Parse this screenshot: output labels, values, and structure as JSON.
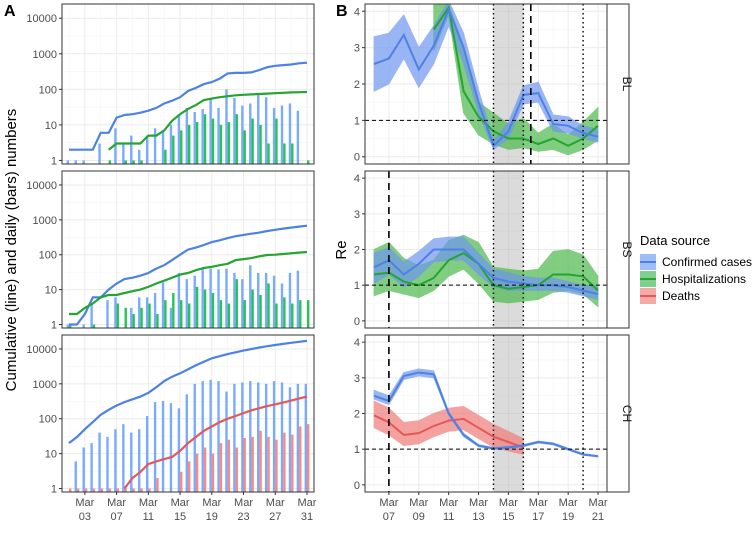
{
  "colors": {
    "confirmed": "#619cff",
    "hospitalizations": "#00ba38",
    "deaths": "#f8766d",
    "confirmed_line": "#4c82e6",
    "hosp_line": "#23a52f",
    "deaths_line": "#e5585a",
    "band_confirmed": "#6f97ee",
    "band_hosp": "#4cb84c",
    "band_deaths": "#f07c78",
    "grid_major": "#ebebeb",
    "grid_minor": "#f5f5f5",
    "shade": "#bdbdbd"
  },
  "legend": {
    "title": "Data source",
    "items": [
      "Confirmed cases",
      "Hospitalizations",
      "Deaths"
    ]
  },
  "chart_data": [
    {
      "id": "A",
      "type": "bar+line (log scale)",
      "panel_label": "A",
      "ylabel": "Cumulative (line) and daily (bars) numbers",
      "ylim_log10": [
        -0.1,
        4.4
      ],
      "yticks": [
        1,
        10,
        100,
        1000,
        10000
      ],
      "ytick_labels": [
        "1",
        "10",
        "100",
        "1000",
        "10000"
      ],
      "x_day_range": [
        0,
        30
      ],
      "xticks": [
        2,
        6,
        10,
        14,
        18,
        22,
        26,
        30
      ],
      "xtick_labels": [
        [
          "Mar",
          "03"
        ],
        [
          "Mar",
          "07"
        ],
        [
          "Mar",
          "11"
        ],
        [
          "Mar",
          "15"
        ],
        [
          "Mar",
          "19"
        ],
        [
          "Mar",
          "23"
        ],
        [
          "Mar",
          "27"
        ],
        [
          "Mar",
          "31"
        ]
      ],
      "x_note": "day index 0 = Mar 01",
      "facets": [
        {
          "name": "BL",
          "confirmed_daily": [
            1,
            1,
            1,
            0,
            3,
            0,
            8,
            3,
            5,
            2,
            5,
            8,
            7,
            10,
            20,
            30,
            23,
            28,
            55,
            30,
            100,
            57,
            35,
            40,
            70,
            60,
            30,
            35,
            40,
            25,
            0
          ],
          "hosp_daily": [
            0,
            0,
            0,
            0,
            0,
            1,
            0,
            1,
            1,
            1,
            0,
            0,
            2,
            5,
            7,
            10,
            12,
            20,
            15,
            10,
            12,
            20,
            7,
            15,
            10,
            3,
            15,
            3,
            3,
            0,
            1
          ],
          "confirmed_cum": [
            2,
            2,
            2,
            2,
            6,
            6,
            16,
            19,
            20,
            22,
            25,
            30,
            40,
            48,
            60,
            90,
            110,
            140,
            160,
            200,
            280,
            290,
            290,
            300,
            350,
            420,
            460,
            480,
            500,
            540,
            560
          ],
          "hosp_cum": [
            null,
            null,
            null,
            null,
            null,
            2,
            3,
            3,
            3,
            3,
            5,
            5,
            7,
            13,
            20,
            28,
            36,
            50,
            55,
            60,
            64,
            68,
            70,
            72,
            74,
            76,
            78,
            80,
            82,
            83,
            84
          ]
        },
        {
          "name": "BS",
          "confirmed_daily": [
            1,
            0,
            1,
            4,
            0,
            5,
            6,
            0,
            3,
            6,
            6,
            8,
            16,
            3,
            30,
            20,
            25,
            40,
            40,
            38,
            40,
            30,
            20,
            50,
            30,
            30,
            25,
            15,
            30,
            35,
            0
          ],
          "hosp_daily": [
            1,
            0,
            0,
            1,
            0,
            0,
            4,
            3,
            2,
            3,
            4,
            2,
            5,
            8,
            5,
            4,
            12,
            10,
            8,
            5,
            4,
            20,
            5,
            10,
            7,
            15,
            4,
            6,
            4,
            5,
            5
          ],
          "confirmed_cum": [
            1,
            1,
            2,
            6,
            6,
            10,
            15,
            20,
            22,
            25,
            30,
            40,
            50,
            70,
            100,
            140,
            160,
            190,
            230,
            260,
            300,
            340,
            370,
            400,
            430,
            480,
            520,
            560,
            600,
            640,
            680
          ],
          "hosp_cum": [
            2,
            2,
            3,
            4,
            6,
            7,
            7,
            8,
            9,
            10,
            12,
            15,
            18,
            22,
            27,
            30,
            36,
            42,
            45,
            50,
            55,
            70,
            75,
            80,
            90,
            98,
            100,
            105,
            110,
            115,
            120
          ]
        },
        {
          "name": "CH",
          "confirmed_daily": [
            0,
            6,
            15,
            20,
            40,
            30,
            50,
            70,
            40,
            50,
            120,
            300,
            320,
            280,
            200,
            500,
            1000,
            1200,
            1300,
            1200,
            600,
            1000,
            1100,
            1200,
            1100,
            1000,
            1200,
            1100,
            800,
            1000,
            1000
          ],
          "deaths_daily": [
            1,
            1,
            1,
            1,
            1,
            1,
            1,
            1,
            1,
            1,
            1,
            2,
            0,
            0,
            3,
            6,
            10,
            15,
            10,
            20,
            25,
            15,
            28,
            30,
            45,
            30,
            25,
            40,
            35,
            60,
            70
          ],
          "confirmed_cum": [
            20,
            30,
            50,
            80,
            130,
            180,
            240,
            300,
            360,
            430,
            550,
            800,
            1200,
            1600,
            2000,
            2600,
            3400,
            4300,
            5400,
            6200,
            7100,
            8000,
            9000,
            10000,
            11000,
            12000,
            13000,
            14000,
            15000,
            16000,
            17000
          ],
          "deaths_cum": [
            null,
            null,
            null,
            null,
            null,
            null,
            null,
            1,
            2,
            3,
            5,
            6,
            7,
            8,
            12,
            20,
            30,
            45,
            60,
            80,
            100,
            120,
            145,
            175,
            200,
            230,
            260,
            290,
            330,
            380,
            430
          ]
        }
      ]
    },
    {
      "id": "B",
      "type": "line with confidence band",
      "panel_label": "B",
      "ylabel": "Re",
      "ylim": [
        -0.2,
        4.2
      ],
      "yticks": [
        0,
        1,
        2,
        3,
        4
      ],
      "ytick_labels": [
        "0",
        "1",
        "2",
        "3",
        "4"
      ],
      "x_day_range": [
        5.4,
        21.6
      ],
      "xticks": [
        7,
        9,
        11,
        13,
        15,
        17,
        19,
        21
      ],
      "xtick_labels": [
        [
          "Mar",
          "07"
        ],
        [
          "Mar",
          "09"
        ],
        [
          "Mar",
          "11"
        ],
        [
          "Mar",
          "13"
        ],
        [
          "Mar",
          "15"
        ],
        [
          "Mar",
          "17"
        ],
        [
          "Mar",
          "19"
        ],
        [
          "Mar",
          "21"
        ]
      ],
      "reference_line_y": 1,
      "shaded_region": [
        14,
        16
      ],
      "dotted_vlines": [
        14,
        16,
        20
      ],
      "facets": [
        {
          "name": "BL",
          "dashed_vline": 16.5,
          "confirmed": {
            "x": [
              6,
              7,
              8,
              9,
              10,
              11,
              12,
              13,
              14,
              15,
              16,
              17,
              18,
              19,
              20,
              21
            ],
            "mid": [
              2.55,
              2.7,
              3.35,
              2.4,
              3.05,
              4.05,
              3.0,
              1.5,
              0.3,
              0.7,
              1.7,
              1.75,
              0.9,
              0.85,
              0.65,
              0.55
            ],
            "lo": [
              1.8,
              2.0,
              2.7,
              1.9,
              2.55,
              3.6,
              2.55,
              1.2,
              0.2,
              0.5,
              1.45,
              1.5,
              0.7,
              0.65,
              0.5,
              0.4
            ],
            "hi": [
              3.3,
              3.4,
              3.9,
              3.0,
              3.6,
              4.3,
              3.4,
              1.85,
              0.45,
              0.95,
              1.95,
              2.05,
              1.15,
              1.1,
              0.85,
              0.75
            ]
          },
          "hosp": {
            "x": [
              10,
              11,
              12,
              13,
              14,
              15,
              16,
              17,
              18,
              19,
              20,
              21
            ],
            "mid": [
              3.5,
              4.1,
              1.8,
              1.1,
              0.7,
              0.5,
              0.5,
              0.35,
              0.5,
              0.3,
              0.5,
              0.85
            ],
            "lo": [
              2.9,
              3.9,
              1.2,
              0.6,
              0.35,
              0.2,
              0.25,
              0.15,
              0.2,
              0.05,
              0.2,
              0.45
            ],
            "hi": [
              4.2,
              4.2,
              3.0,
              1.5,
              1.2,
              0.9,
              1.05,
              0.65,
              0.9,
              0.6,
              0.95,
              1.35
            ]
          }
        },
        {
          "name": "BS",
          "dashed_vline": 7,
          "confirmed": {
            "x": [
              6,
              7,
              8,
              9,
              10,
              11,
              12,
              13,
              14,
              15,
              16,
              17,
              18,
              19,
              20,
              21
            ],
            "mid": [
              1.5,
              1.7,
              1.3,
              1.6,
              2.0,
              2.0,
              2.0,
              1.6,
              1.2,
              1.1,
              1.05,
              1.0,
              1.0,
              0.95,
              0.85,
              0.75
            ],
            "lo": [
              1.05,
              1.3,
              0.95,
              1.25,
              1.65,
              1.7,
              1.7,
              1.3,
              0.95,
              0.85,
              0.85,
              0.85,
              0.85,
              0.8,
              0.7,
              0.6
            ],
            "hi": [
              1.9,
              2.05,
              1.65,
              1.95,
              2.3,
              2.35,
              2.35,
              1.9,
              1.45,
              1.35,
              1.25,
              1.2,
              1.2,
              1.1,
              1.0,
              0.95
            ]
          },
          "hosp": {
            "x": [
              6,
              7,
              8,
              9,
              10,
              11,
              12,
              13,
              14,
              15,
              16,
              17,
              18,
              19,
              20,
              21
            ],
            "mid": [
              1.3,
              1.35,
              1.1,
              1.0,
              1.2,
              1.7,
              1.9,
              1.6,
              1.0,
              0.9,
              0.95,
              1.0,
              1.3,
              1.3,
              1.25,
              0.85
            ],
            "lo": [
              0.7,
              0.85,
              0.75,
              0.65,
              0.85,
              1.25,
              1.45,
              1.05,
              0.55,
              0.5,
              0.55,
              0.6,
              0.8,
              0.85,
              0.75,
              0.4
            ],
            "hi": [
              2.0,
              2.2,
              1.75,
              1.55,
              1.7,
              2.25,
              2.4,
              2.2,
              1.5,
              1.45,
              1.4,
              1.45,
              1.95,
              2.0,
              1.85,
              1.25
            ]
          }
        },
        {
          "name": "CH",
          "dashed_vline": 7,
          "confirmed": {
            "x": [
              6,
              7,
              8,
              9,
              10,
              11,
              12,
              13,
              14,
              15,
              16,
              17,
              18,
              19,
              20,
              21
            ],
            "mid": [
              2.5,
              2.35,
              3.05,
              3.15,
              3.1,
              2.0,
              1.4,
              1.1,
              1.02,
              1.05,
              1.1,
              1.2,
              1.15,
              1.0,
              0.85,
              0.8
            ],
            "lo": [
              2.4,
              2.25,
              2.95,
              3.05,
              3.0,
              1.95,
              1.35,
              1.07,
              0.99,
              1.02,
              1.07,
              1.17,
              1.12,
              0.97,
              0.83,
              0.78
            ],
            "hi": [
              2.65,
              2.5,
              3.15,
              3.25,
              3.2,
              2.05,
              1.45,
              1.13,
              1.05,
              1.08,
              1.13,
              1.23,
              1.18,
              1.03,
              0.88,
              0.82
            ]
          },
          "deaths": {
            "x": [
              6,
              7,
              8,
              9,
              10,
              11,
              12,
              13,
              14,
              15,
              16
            ],
            "mid": [
              1.95,
              1.75,
              1.4,
              1.45,
              1.65,
              1.8,
              1.85,
              1.6,
              1.35,
              1.2,
              1.05
            ],
            "lo": [
              1.6,
              1.4,
              1.1,
              1.15,
              1.35,
              1.5,
              1.55,
              1.3,
              1.05,
              0.95,
              0.85
            ],
            "hi": [
              2.35,
              2.15,
              1.75,
              1.8,
              2.0,
              2.15,
              2.2,
              1.95,
              1.7,
              1.5,
              1.3
            ]
          }
        }
      ]
    }
  ]
}
